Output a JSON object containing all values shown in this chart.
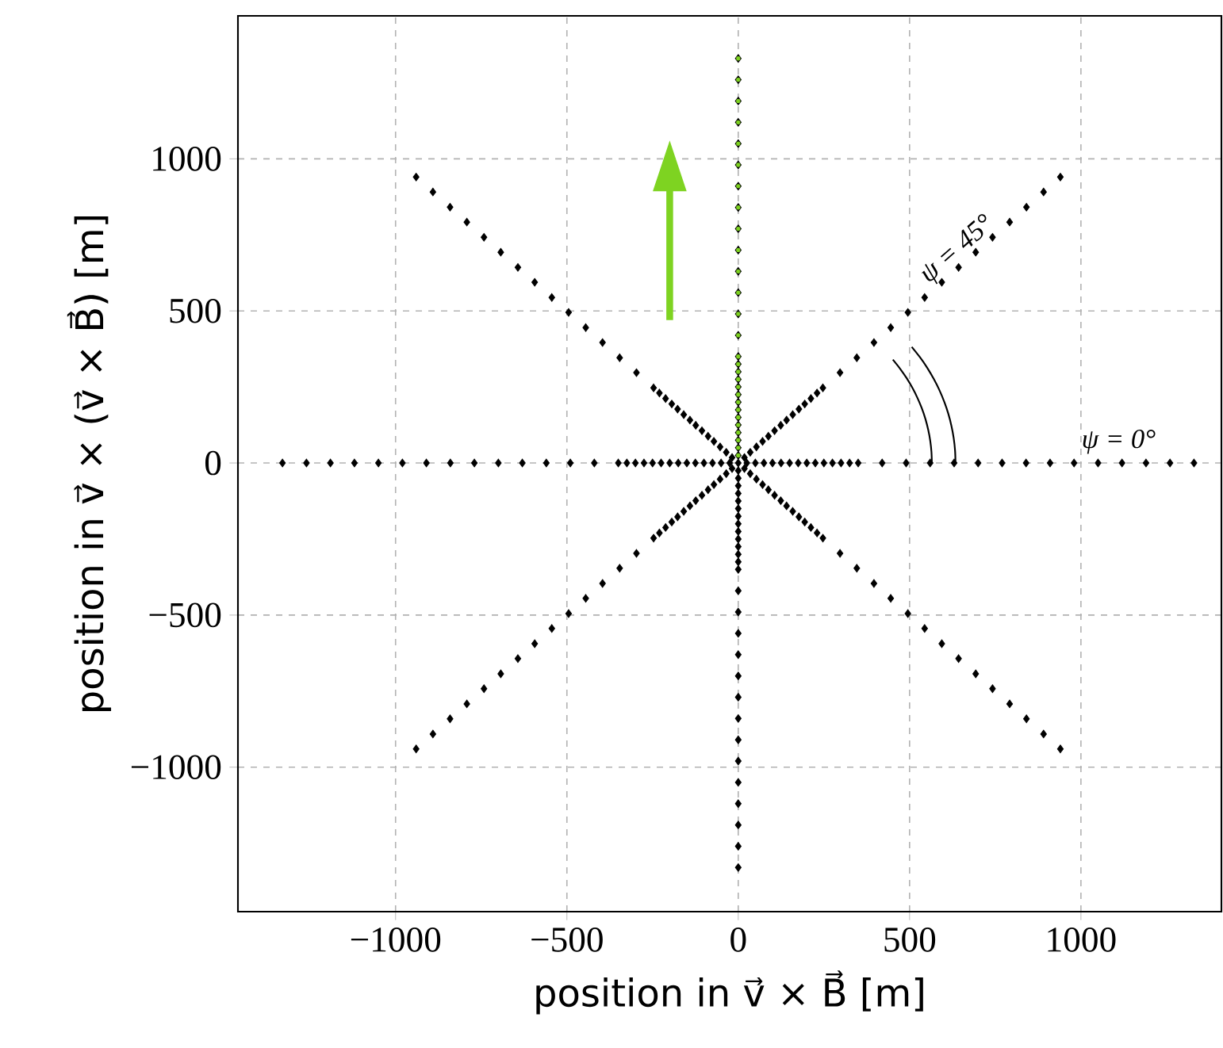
{
  "chart_data": {
    "type": "scatter",
    "xlabel": "position in v⃗ × B⃗ [m]",
    "ylabel": "position in v⃗ × (v⃗ × B⃗) [m]",
    "xlim": [
      -1460,
      1410
    ],
    "ylim": [
      -1475,
      1470
    ],
    "xticks": [
      {
        "value": -1000,
        "label": "−1000"
      },
      {
        "value": -500,
        "label": "−500"
      },
      0,
      500,
      1000
    ],
    "yticks": [
      {
        "value": -1000,
        "label": "−1000"
      },
      {
        "value": -500,
        "label": "−500"
      },
      0,
      500,
      1000
    ],
    "grid": true,
    "marker": "diamond",
    "annotations": [
      "ψ = 45°",
      "ψ = 0°"
    ],
    "series": [
      {
        "color": "#000000",
        "x": [
          0,
          25,
          50,
          75,
          100,
          125,
          150,
          175,
          200,
          225,
          250,
          275,
          300,
          325,
          350,
          420,
          490,
          560,
          630,
          700,
          770,
          840,
          910,
          980,
          1050,
          1120,
          1190,
          1260,
          1330
        ],
        "values": [
          0,
          0,
          0,
          0,
          0,
          0,
          0,
          0,
          0,
          0,
          0,
          0,
          0,
          0,
          0,
          0,
          0,
          0,
          0,
          0,
          0,
          0,
          0,
          0,
          0,
          0,
          0,
          0,
          0
        ]
      },
      {
        "color": "#000000",
        "x": [
          -25,
          -50,
          -75,
          -100,
          -125,
          -150,
          -175,
          -200,
          -225,
          -250,
          -275,
          -300,
          -325,
          -350,
          -420,
          -490,
          -560,
          -630,
          -700,
          -770,
          -840,
          -910,
          -980,
          -1050,
          -1120,
          -1190,
          -1260,
          -1330
        ],
        "values": [
          0,
          0,
          0,
          0,
          0,
          0,
          0,
          0,
          0,
          0,
          0,
          0,
          0,
          0,
          0,
          0,
          0,
          0,
          0,
          0,
          0,
          0,
          0,
          0,
          0,
          0,
          0,
          0
        ]
      },
      {
        "color": "#000000",
        "x": [
          0,
          0,
          0,
          0,
          0,
          0,
          0,
          0,
          0,
          0,
          0,
          0,
          0,
          0,
          0,
          0,
          0,
          0,
          0,
          0,
          0,
          0,
          0,
          0,
          0,
          0,
          0,
          0
        ],
        "values": [
          25,
          50,
          75,
          100,
          125,
          150,
          175,
          200,
          225,
          250,
          275,
          300,
          325,
          350,
          420,
          490,
          560,
          630,
          700,
          770,
          840,
          910,
          980,
          1050,
          1120,
          1190,
          1260,
          1330
        ]
      },
      {
        "color": "#000000",
        "x": [
          0,
          0,
          0,
          0,
          0,
          0,
          0,
          0,
          0,
          0,
          0,
          0,
          0,
          0,
          0,
          0,
          0,
          0,
          0,
          0,
          0,
          0,
          0,
          0,
          0,
          0,
          0,
          0
        ],
        "values": [
          -25,
          -50,
          -75,
          -100,
          -125,
          -150,
          -175,
          -200,
          -225,
          -250,
          -275,
          -300,
          -325,
          -350,
          -420,
          -490,
          -560,
          -630,
          -700,
          -770,
          -840,
          -910,
          -980,
          -1050,
          -1120,
          -1190,
          -1260,
          -1330
        ]
      },
      {
        "color": "#000000",
        "x": [
          18,
          35,
          53,
          71,
          88,
          106,
          124,
          141,
          159,
          177,
          194,
          212,
          230,
          247,
          297,
          346,
          396,
          445,
          495,
          544,
          594,
          643,
          693,
          742,
          792,
          841,
          891,
          940
        ],
        "values": [
          18,
          35,
          53,
          71,
          88,
          106,
          124,
          141,
          159,
          177,
          194,
          212,
          230,
          247,
          297,
          346,
          396,
          445,
          495,
          544,
          594,
          643,
          693,
          742,
          792,
          841,
          891,
          940
        ]
      },
      {
        "color": "#000000",
        "x": [
          -18,
          -35,
          -53,
          -71,
          -88,
          -106,
          -124,
          -141,
          -159,
          -177,
          -194,
          -212,
          -230,
          -247,
          -297,
          -346,
          -396,
          -445,
          -495,
          -544,
          -594,
          -643,
          -693,
          -742,
          -792,
          -841,
          -891,
          -940
        ],
        "values": [
          18,
          35,
          53,
          71,
          88,
          106,
          124,
          141,
          159,
          177,
          194,
          212,
          230,
          247,
          297,
          346,
          396,
          445,
          495,
          544,
          594,
          643,
          693,
          742,
          792,
          841,
          891,
          940
        ]
      },
      {
        "color": "#000000",
        "x": [
          18,
          35,
          53,
          71,
          88,
          106,
          124,
          141,
          159,
          177,
          194,
          212,
          230,
          247,
          297,
          346,
          396,
          445,
          495,
          544,
          594,
          643,
          693,
          742,
          792,
          841,
          891,
          940
        ],
        "values": [
          -18,
          -35,
          -53,
          -71,
          -88,
          -106,
          -124,
          -141,
          -159,
          -177,
          -194,
          -212,
          -230,
          -247,
          -297,
          -346,
          -396,
          -445,
          -495,
          -544,
          -594,
          -643,
          -693,
          -742,
          -792,
          -841,
          -891,
          -940
        ]
      },
      {
        "color": "#000000",
        "x": [
          -18,
          -35,
          -53,
          -71,
          -88,
          -106,
          -124,
          -141,
          -159,
          -177,
          -194,
          -212,
          -230,
          -247,
          -297,
          -346,
          -396,
          -445,
          -495,
          -544,
          -594,
          -643,
          -693,
          -742,
          -792,
          -841,
          -891,
          -940
        ],
        "values": [
          -18,
          -35,
          -53,
          -71,
          -88,
          -106,
          -124,
          -141,
          -159,
          -177,
          -194,
          -212,
          -230,
          -247,
          -297,
          -346,
          -396,
          -445,
          -495,
          -544,
          -594,
          -643,
          -693,
          -742,
          -792,
          -841,
          -891,
          -940
        ]
      },
      {
        "color": "#7ed321",
        "marker": "circle",
        "x": [
          0,
          0,
          0,
          0,
          0,
          0,
          0,
          0,
          0,
          0,
          0,
          0,
          0,
          0,
          0,
          0,
          0,
          0,
          0,
          0,
          0,
          0,
          0,
          0,
          0,
          0,
          0,
          0
        ],
        "values": [
          25,
          50,
          75,
          100,
          125,
          150,
          175,
          200,
          225,
          250,
          275,
          300,
          325,
          350,
          420,
          490,
          560,
          630,
          700,
          770,
          840,
          910,
          980,
          1050,
          1120,
          1190,
          1260,
          1330
        ]
      }
    ]
  }
}
